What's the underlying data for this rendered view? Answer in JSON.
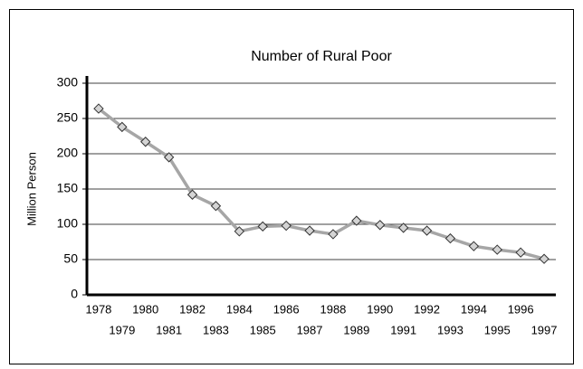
{
  "chart_data": {
    "type": "line",
    "title": "Number of Rural Poor",
    "y_label": "Million Person",
    "categories": [
      "1978",
      "1979",
      "1980",
      "1981",
      "1982",
      "1983",
      "1984",
      "1985",
      "1986",
      "1987",
      "1988",
      "1989",
      "1990",
      "1991",
      "1992",
      "1993",
      "1994",
      "1995",
      "1996",
      "1997"
    ],
    "series": [
      {
        "name": "Number of Rural Poor",
        "color": "#a6a6a6",
        "marker_color": "#d4d4d4",
        "values": [
          264,
          238,
          217,
          195,
          142,
          126,
          90,
          97,
          98,
          91,
          86,
          105,
          99,
          95,
          91,
          80,
          69,
          64,
          60,
          51
        ]
      }
    ],
    "ylim": [
      0,
      300
    ],
    "yticks": [
      0,
      50,
      100,
      150,
      200,
      250,
      300
    ],
    "grid": true,
    "legend": false
  }
}
